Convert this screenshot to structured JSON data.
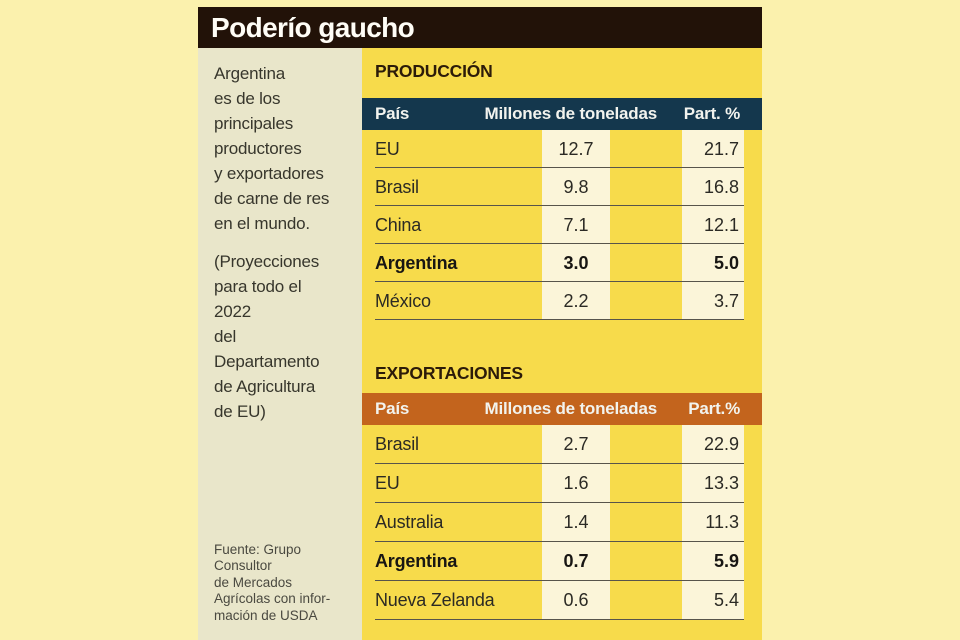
{
  "title": "Poderío gaucho",
  "sidebar": {
    "intro": "Argentina\nes de los\nprincipales\nproductores\ny exportadores\nde carne de res\nen el mundo.",
    "note": "(Proyecciones\npara todo el\n2022\ndel\nDepartamento\nde Agricultura\nde EU)",
    "source": "Fuente: Grupo\nConsultor\nde Mercados\nAgrícolas con infor-\nmación de USDA"
  },
  "colors": {
    "page_background": "#fbf1ad",
    "panel_yellow": "#f7db4b",
    "sidebar_beige": "#e9e6ca",
    "title_bar_black": "#221208",
    "production_header_navy": "#14374d",
    "exports_header_orange": "#c3641d",
    "number_cell_cream": "#fbf5d9",
    "row_divider": "#57544b"
  },
  "chart_data": [
    {
      "type": "table",
      "title": "PRODUCCIÓN",
      "columns": [
        "País",
        "Millones de toneladas",
        "Part. %"
      ],
      "rows": [
        [
          "EU",
          "12.7",
          "21.7"
        ],
        [
          "Brasil",
          "9.8",
          "16.8"
        ],
        [
          "China",
          "7.1",
          "12.1"
        ],
        [
          "Argentina",
          "3.0",
          "5.0"
        ],
        [
          "México",
          "2.2",
          "3.7"
        ]
      ],
      "highlighted_row": "Argentina",
      "units": "millones de toneladas y participación porcentual"
    },
    {
      "type": "table",
      "title": "EXPORTACIONES",
      "columns": [
        "País",
        "Millones de toneladas",
        "Part.%"
      ],
      "rows": [
        [
          "Brasil",
          "2.7",
          "22.9"
        ],
        [
          "EU",
          "1.6",
          "13.3"
        ],
        [
          "Australia",
          "1.4",
          "11.3"
        ],
        [
          "Argentina",
          "0.7",
          "5.9"
        ],
        [
          "Nueva Zelanda",
          "0.6",
          "5.4"
        ]
      ],
      "highlighted_row": "Argentina",
      "units": "millones de toneladas y participación porcentual"
    }
  ]
}
